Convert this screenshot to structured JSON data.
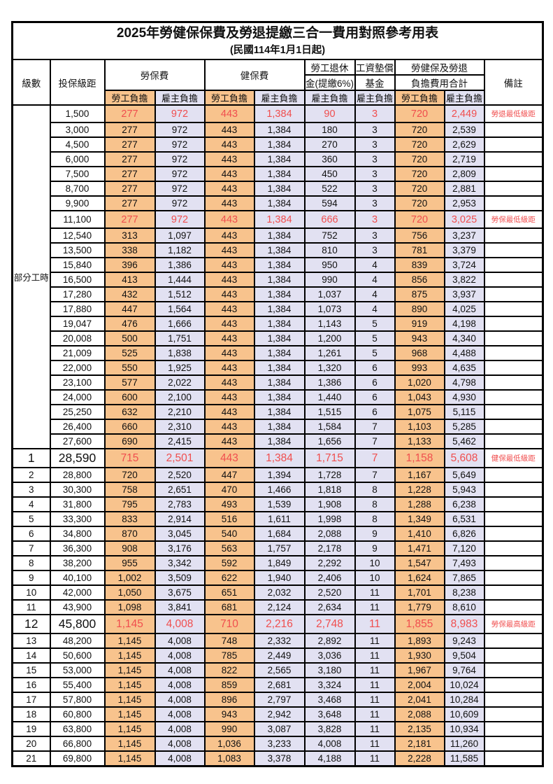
{
  "colors": {
    "employee_bg": "#F8C38D",
    "employer_bg": "#E2E1F2",
    "highlight_text": "#F04E4E",
    "grid": "#000000",
    "page_bg": "#FFFFFF"
  },
  "title": {
    "line1": "2025年勞健保保費及勞退提繳三合一費用對照參考用表",
    "line2": "(民國114年1月1日起)"
  },
  "header": {
    "level": "級數",
    "bracket": "投保級距",
    "labor_group": "勞保費",
    "health_group": "健保費",
    "pension_line1": "勞工退休",
    "pension_line2": "金(提繳6%)",
    "wage_fund_line1": "工資墊償",
    "wage_fund_line2": "基金",
    "total_line1": "勞健保及勞退",
    "total_line2": "負擔費用合計",
    "remark": "備註",
    "employee": "勞工負擔",
    "employer": "雇主負擔"
  },
  "partial_label": "部分工時",
  "rows": [
    {
      "section": "partial",
      "level": "",
      "bracket": "1,500",
      "labor_emp": "277",
      "labor_er": "972",
      "health_emp": "443",
      "health_er": "1,384",
      "pension_er": "90",
      "wage_er": "3",
      "total_emp": "720",
      "total_er": "2,449",
      "remark": "勞退最低級距",
      "style": "em"
    },
    {
      "section": "partial",
      "level": "",
      "bracket": "3,000",
      "labor_emp": "277",
      "labor_er": "972",
      "health_emp": "443",
      "health_er": "1,384",
      "pension_er": "180",
      "wage_er": "3",
      "total_emp": "720",
      "total_er": "2,539",
      "remark": "",
      "style": "normal"
    },
    {
      "section": "partial",
      "level": "",
      "bracket": "4,500",
      "labor_emp": "277",
      "labor_er": "972",
      "health_emp": "443",
      "health_er": "1,384",
      "pension_er": "270",
      "wage_er": "3",
      "total_emp": "720",
      "total_er": "2,629",
      "remark": "",
      "style": "normal"
    },
    {
      "section": "partial",
      "level": "",
      "bracket": "6,000",
      "labor_emp": "277",
      "labor_er": "972",
      "health_emp": "443",
      "health_er": "1,384",
      "pension_er": "360",
      "wage_er": "3",
      "total_emp": "720",
      "total_er": "2,719",
      "remark": "",
      "style": "normal"
    },
    {
      "section": "partial",
      "level": "",
      "bracket": "7,500",
      "labor_emp": "277",
      "labor_er": "972",
      "health_emp": "443",
      "health_er": "1,384",
      "pension_er": "450",
      "wage_er": "3",
      "total_emp": "720",
      "total_er": "2,809",
      "remark": "",
      "style": "normal"
    },
    {
      "section": "partial",
      "level": "",
      "bracket": "8,700",
      "labor_emp": "277",
      "labor_er": "972",
      "health_emp": "443",
      "health_er": "1,384",
      "pension_er": "522",
      "wage_er": "3",
      "total_emp": "720",
      "total_er": "2,881",
      "remark": "",
      "style": "normal"
    },
    {
      "section": "partial",
      "level": "",
      "bracket": "9,900",
      "labor_emp": "277",
      "labor_er": "972",
      "health_emp": "443",
      "health_er": "1,384",
      "pension_er": "594",
      "wage_er": "3",
      "total_emp": "720",
      "total_er": "2,953",
      "remark": "",
      "style": "normal"
    },
    {
      "section": "partial",
      "level": "",
      "bracket": "11,100",
      "labor_emp": "277",
      "labor_er": "972",
      "health_emp": "443",
      "health_er": "1,384",
      "pension_er": "666",
      "wage_er": "3",
      "total_emp": "720",
      "total_er": "3,025",
      "remark": "勞保最低級距",
      "style": "em"
    },
    {
      "section": "partial",
      "level": "",
      "bracket": "12,540",
      "labor_emp": "313",
      "labor_er": "1,097",
      "health_emp": "443",
      "health_er": "1,384",
      "pension_er": "752",
      "wage_er": "3",
      "total_emp": "756",
      "total_er": "3,237",
      "remark": "",
      "style": "normal"
    },
    {
      "section": "partial",
      "level": "",
      "bracket": "13,500",
      "labor_emp": "338",
      "labor_er": "1,182",
      "health_emp": "443",
      "health_er": "1,384",
      "pension_er": "810",
      "wage_er": "3",
      "total_emp": "781",
      "total_er": "3,379",
      "remark": "",
      "style": "normal"
    },
    {
      "section": "partial",
      "level": "",
      "bracket": "15,840",
      "labor_emp": "396",
      "labor_er": "1,386",
      "health_emp": "443",
      "health_er": "1,384",
      "pension_er": "950",
      "wage_er": "4",
      "total_emp": "839",
      "total_er": "3,724",
      "remark": "",
      "style": "normal"
    },
    {
      "section": "partial",
      "level": "",
      "bracket": "16,500",
      "labor_emp": "413",
      "labor_er": "1,444",
      "health_emp": "443",
      "health_er": "1,384",
      "pension_er": "990",
      "wage_er": "4",
      "total_emp": "856",
      "total_er": "3,822",
      "remark": "",
      "style": "normal"
    },
    {
      "section": "partial",
      "level": "",
      "bracket": "17,280",
      "labor_emp": "432",
      "labor_er": "1,512",
      "health_emp": "443",
      "health_er": "1,384",
      "pension_er": "1,037",
      "wage_er": "4",
      "total_emp": "875",
      "total_er": "3,937",
      "remark": "",
      "style": "normal"
    },
    {
      "section": "partial",
      "level": "",
      "bracket": "17,880",
      "labor_emp": "447",
      "labor_er": "1,564",
      "health_emp": "443",
      "health_er": "1,384",
      "pension_er": "1,073",
      "wage_er": "4",
      "total_emp": "890",
      "total_er": "4,025",
      "remark": "",
      "style": "normal"
    },
    {
      "section": "partial",
      "level": "",
      "bracket": "19,047",
      "labor_emp": "476",
      "labor_er": "1,666",
      "health_emp": "443",
      "health_er": "1,384",
      "pension_er": "1,143",
      "wage_er": "5",
      "total_emp": "919",
      "total_er": "4,198",
      "remark": "",
      "style": "normal"
    },
    {
      "section": "partial",
      "level": "",
      "bracket": "20,008",
      "labor_emp": "500",
      "labor_er": "1,751",
      "health_emp": "443",
      "health_er": "1,384",
      "pension_er": "1,200",
      "wage_er": "5",
      "total_emp": "943",
      "total_er": "4,340",
      "remark": "",
      "style": "normal"
    },
    {
      "section": "partial",
      "level": "",
      "bracket": "21,009",
      "labor_emp": "525",
      "labor_er": "1,838",
      "health_emp": "443",
      "health_er": "1,384",
      "pension_er": "1,261",
      "wage_er": "5",
      "total_emp": "968",
      "total_er": "4,488",
      "remark": "",
      "style": "normal"
    },
    {
      "section": "partial",
      "level": "",
      "bracket": "22,000",
      "labor_emp": "550",
      "labor_er": "1,925",
      "health_emp": "443",
      "health_er": "1,384",
      "pension_er": "1,320",
      "wage_er": "6",
      "total_emp": "993",
      "total_er": "4,635",
      "remark": "",
      "style": "normal"
    },
    {
      "section": "partial",
      "level": "",
      "bracket": "23,100",
      "labor_emp": "577",
      "labor_er": "2,022",
      "health_emp": "443",
      "health_er": "1,384",
      "pension_er": "1,386",
      "wage_er": "6",
      "total_emp": "1,020",
      "total_er": "4,798",
      "remark": "",
      "style": "normal"
    },
    {
      "section": "partial",
      "level": "",
      "bracket": "24,000",
      "labor_emp": "600",
      "labor_er": "2,100",
      "health_emp": "443",
      "health_er": "1,384",
      "pension_er": "1,440",
      "wage_er": "6",
      "total_emp": "1,043",
      "total_er": "4,930",
      "remark": "",
      "style": "normal"
    },
    {
      "section": "partial",
      "level": "",
      "bracket": "25,250",
      "labor_emp": "632",
      "labor_er": "2,210",
      "health_emp": "443",
      "health_er": "1,384",
      "pension_er": "1,515",
      "wage_er": "6",
      "total_emp": "1,075",
      "total_er": "5,115",
      "remark": "",
      "style": "normal"
    },
    {
      "section": "partial",
      "level": "",
      "bracket": "26,400",
      "labor_emp": "660",
      "labor_er": "2,310",
      "health_emp": "443",
      "health_er": "1,384",
      "pension_er": "1,584",
      "wage_er": "7",
      "total_emp": "1,103",
      "total_er": "5,285",
      "remark": "",
      "style": "normal"
    },
    {
      "section": "partial",
      "level": "",
      "bracket": "27,600",
      "labor_emp": "690",
      "labor_er": "2,415",
      "health_emp": "443",
      "health_er": "1,384",
      "pension_er": "1,656",
      "wage_er": "7",
      "total_emp": "1,133",
      "total_er": "5,462",
      "remark": "",
      "style": "normal"
    },
    {
      "section": "numbered",
      "level": "1",
      "bracket": "28,590",
      "labor_emp": "715",
      "labor_er": "2,501",
      "health_emp": "443",
      "health_er": "1,384",
      "pension_er": "1,715",
      "wage_er": "7",
      "total_emp": "1,158",
      "total_er": "5,608",
      "remark": "健保最低級距",
      "style": "big"
    },
    {
      "section": "numbered",
      "level": "2",
      "bracket": "28,800",
      "labor_emp": "720",
      "labor_er": "2,520",
      "health_emp": "447",
      "health_er": "1,394",
      "pension_er": "1,728",
      "wage_er": "7",
      "total_emp": "1,167",
      "total_er": "5,649",
      "remark": "",
      "style": "normal"
    },
    {
      "section": "numbered",
      "level": "3",
      "bracket": "30,300",
      "labor_emp": "758",
      "labor_er": "2,651",
      "health_emp": "470",
      "health_er": "1,466",
      "pension_er": "1,818",
      "wage_er": "8",
      "total_emp": "1,228",
      "total_er": "5,943",
      "remark": "",
      "style": "normal"
    },
    {
      "section": "numbered",
      "level": "4",
      "bracket": "31,800",
      "labor_emp": "795",
      "labor_er": "2,783",
      "health_emp": "493",
      "health_er": "1,539",
      "pension_er": "1,908",
      "wage_er": "8",
      "total_emp": "1,288",
      "total_er": "6,238",
      "remark": "",
      "style": "normal"
    },
    {
      "section": "numbered",
      "level": "5",
      "bracket": "33,300",
      "labor_emp": "833",
      "labor_er": "2,914",
      "health_emp": "516",
      "health_er": "1,611",
      "pension_er": "1,998",
      "wage_er": "8",
      "total_emp": "1,349",
      "total_er": "6,531",
      "remark": "",
      "style": "normal"
    },
    {
      "section": "numbered",
      "level": "6",
      "bracket": "34,800",
      "labor_emp": "870",
      "labor_er": "3,045",
      "health_emp": "540",
      "health_er": "1,684",
      "pension_er": "2,088",
      "wage_er": "9",
      "total_emp": "1,410",
      "total_er": "6,826",
      "remark": "",
      "style": "normal"
    },
    {
      "section": "numbered",
      "level": "7",
      "bracket": "36,300",
      "labor_emp": "908",
      "labor_er": "3,176",
      "health_emp": "563",
      "health_er": "1,757",
      "pension_er": "2,178",
      "wage_er": "9",
      "total_emp": "1,471",
      "total_er": "7,120",
      "remark": "",
      "style": "normal"
    },
    {
      "section": "numbered",
      "level": "8",
      "bracket": "38,200",
      "labor_emp": "955",
      "labor_er": "3,342",
      "health_emp": "592",
      "health_er": "1,849",
      "pension_er": "2,292",
      "wage_er": "10",
      "total_emp": "1,547",
      "total_er": "7,493",
      "remark": "",
      "style": "normal"
    },
    {
      "section": "numbered",
      "level": "9",
      "bracket": "40,100",
      "labor_emp": "1,002",
      "labor_er": "3,509",
      "health_emp": "622",
      "health_er": "1,940",
      "pension_er": "2,406",
      "wage_er": "10",
      "total_emp": "1,624",
      "total_er": "7,865",
      "remark": "",
      "style": "normal"
    },
    {
      "section": "numbered",
      "level": "10",
      "bracket": "42,000",
      "labor_emp": "1,050",
      "labor_er": "3,675",
      "health_emp": "651",
      "health_er": "2,032",
      "pension_er": "2,520",
      "wage_er": "11",
      "total_emp": "1,701",
      "total_er": "8,238",
      "remark": "",
      "style": "normal"
    },
    {
      "section": "numbered",
      "level": "11",
      "bracket": "43,900",
      "labor_emp": "1,098",
      "labor_er": "3,841",
      "health_emp": "681",
      "health_er": "2,124",
      "pension_er": "2,634",
      "wage_er": "11",
      "total_emp": "1,779",
      "total_er": "8,610",
      "remark": "",
      "style": "normal"
    },
    {
      "section": "numbered",
      "level": "12",
      "bracket": "45,800",
      "labor_emp": "1,145",
      "labor_er": "4,008",
      "health_emp": "710",
      "health_er": "2,216",
      "pension_er": "2,748",
      "wage_er": "11",
      "total_emp": "1,855",
      "total_er": "8,983",
      "remark": "勞保最高級距",
      "style": "big"
    },
    {
      "section": "numbered",
      "level": "13",
      "bracket": "48,200",
      "labor_emp": "1,145",
      "labor_er": "4,008",
      "health_emp": "748",
      "health_er": "2,332",
      "pension_er": "2,892",
      "wage_er": "11",
      "total_emp": "1,893",
      "total_er": "9,243",
      "remark": "",
      "style": "normal"
    },
    {
      "section": "numbered",
      "level": "14",
      "bracket": "50,600",
      "labor_emp": "1,145",
      "labor_er": "4,008",
      "health_emp": "785",
      "health_er": "2,449",
      "pension_er": "3,036",
      "wage_er": "11",
      "total_emp": "1,930",
      "total_er": "9,504",
      "remark": "",
      "style": "normal"
    },
    {
      "section": "numbered",
      "level": "15",
      "bracket": "53,000",
      "labor_emp": "1,145",
      "labor_er": "4,008",
      "health_emp": "822",
      "health_er": "2,565",
      "pension_er": "3,180",
      "wage_er": "11",
      "total_emp": "1,967",
      "total_er": "9,764",
      "remark": "",
      "style": "normal"
    },
    {
      "section": "numbered",
      "level": "16",
      "bracket": "55,400",
      "labor_emp": "1,145",
      "labor_er": "4,008",
      "health_emp": "859",
      "health_er": "2,681",
      "pension_er": "3,324",
      "wage_er": "11",
      "total_emp": "2,004",
      "total_er": "10,024",
      "remark": "",
      "style": "normal"
    },
    {
      "section": "numbered",
      "level": "17",
      "bracket": "57,800",
      "labor_emp": "1,145",
      "labor_er": "4,008",
      "health_emp": "896",
      "health_er": "2,797",
      "pension_er": "3,468",
      "wage_er": "11",
      "total_emp": "2,041",
      "total_er": "10,284",
      "remark": "",
      "style": "normal"
    },
    {
      "section": "numbered",
      "level": "18",
      "bracket": "60,800",
      "labor_emp": "1,145",
      "labor_er": "4,008",
      "health_emp": "943",
      "health_er": "2,942",
      "pension_er": "3,648",
      "wage_er": "11",
      "total_emp": "2,088",
      "total_er": "10,609",
      "remark": "",
      "style": "normal"
    },
    {
      "section": "numbered",
      "level": "19",
      "bracket": "63,800",
      "labor_emp": "1,145",
      "labor_er": "4,008",
      "health_emp": "990",
      "health_er": "3,087",
      "pension_er": "3,828",
      "wage_er": "11",
      "total_emp": "2,135",
      "total_er": "10,934",
      "remark": "",
      "style": "normal"
    },
    {
      "section": "numbered",
      "level": "20",
      "bracket": "66,800",
      "labor_emp": "1,145",
      "labor_er": "4,008",
      "health_emp": "1,036",
      "health_er": "3,233",
      "pension_er": "4,008",
      "wage_er": "11",
      "total_emp": "2,181",
      "total_er": "11,260",
      "remark": "",
      "style": "normal"
    },
    {
      "section": "numbered",
      "level": "21",
      "bracket": "69,800",
      "labor_emp": "1,145",
      "labor_er": "4,008",
      "health_emp": "1,083",
      "health_er": "3,378",
      "pension_er": "4,188",
      "wage_er": "11",
      "total_emp": "2,228",
      "total_er": "11,585",
      "remark": "",
      "style": "normal"
    }
  ]
}
